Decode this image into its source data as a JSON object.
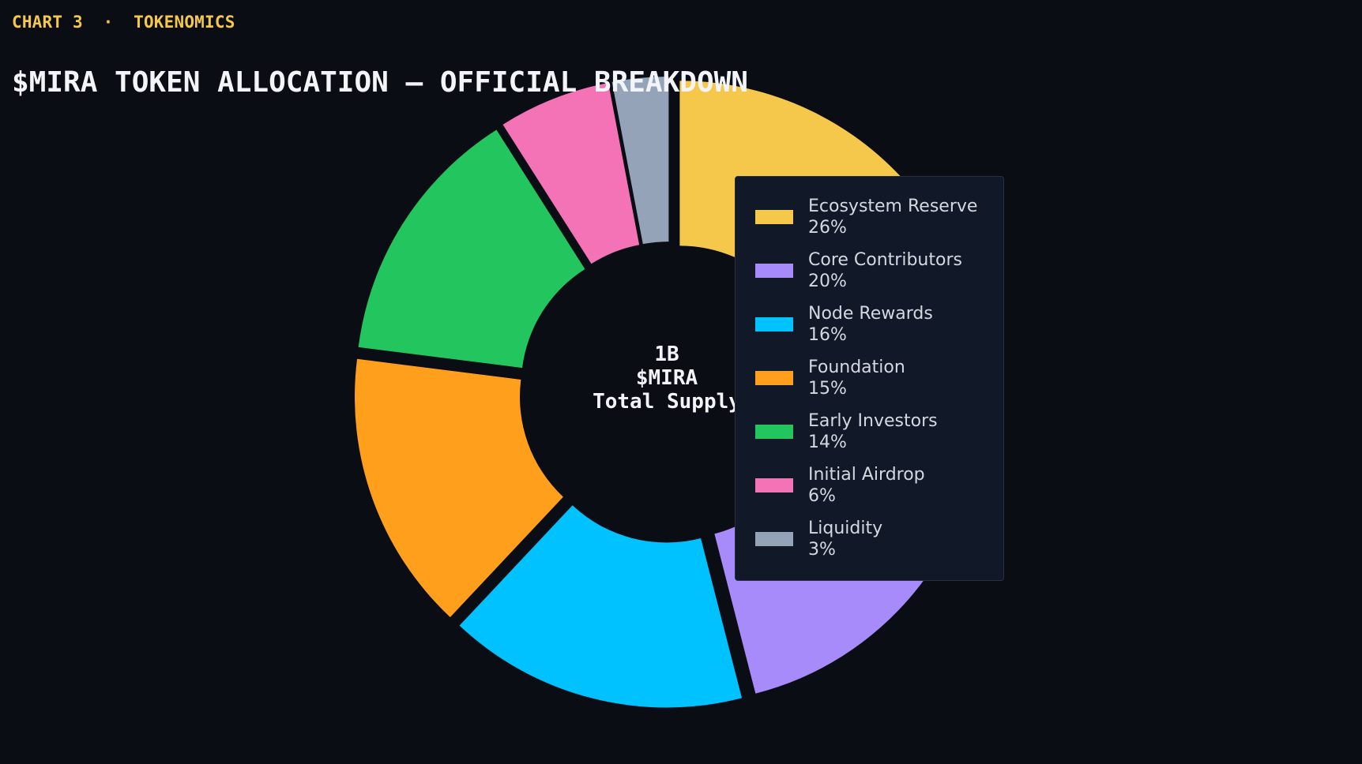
{
  "header": {
    "kicker": "CHART 3  ·  TOKENOMICS"
  },
  "chart_data": {
    "type": "pie",
    "title": "$MIRA TOKEN ALLOCATION — OFFICIAL BREAKDOWN",
    "center_label": [
      "1B",
      "$MIRA",
      "Total Supply"
    ],
    "categories": [
      "Ecosystem Reserve",
      "Core Contributors",
      "Node Rewards",
      "Foundation",
      "Early Investors",
      "Initial Airdrop",
      "Liquidity"
    ],
    "values": [
      26,
      20,
      16,
      15,
      14,
      6,
      3
    ],
    "value_labels": [
      "26%",
      "20%",
      "16%",
      "15%",
      "14%",
      "6%",
      "3%"
    ],
    "colors": [
      "#f5c84c",
      "#a78bfa",
      "#00c2ff",
      "#ff9f1c",
      "#22c55e",
      "#f472b6",
      "#94a3b8"
    ],
    "donut": true,
    "legend": "right"
  }
}
